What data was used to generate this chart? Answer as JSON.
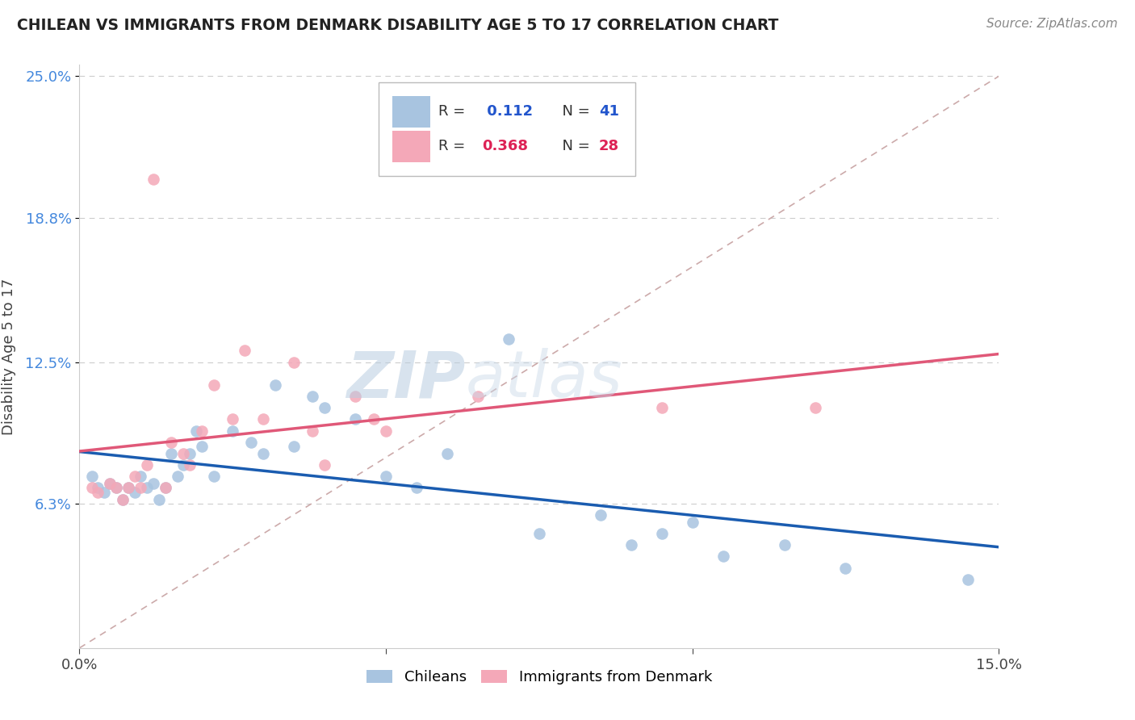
{
  "title": "CHILEAN VS IMMIGRANTS FROM DENMARK DISABILITY AGE 5 TO 17 CORRELATION CHART",
  "source": "Source: ZipAtlas.com",
  "ylabel": "Disability Age 5 to 17",
  "xmin": 0.0,
  "xmax": 15.0,
  "ymin": 0.0,
  "ymax": 25.0,
  "yticks": [
    6.3,
    12.5,
    18.8,
    25.0
  ],
  "xticks": [
    0.0,
    5.0,
    10.0,
    15.0
  ],
  "xtick_labels": [
    "0.0%",
    "",
    "",
    "15.0%"
  ],
  "ytick_labels": [
    "6.3%",
    "12.5%",
    "18.8%",
    "25.0%"
  ],
  "r1": "0.112",
  "n1": "41",
  "r2": "0.368",
  "n2": "28",
  "chilean_color": "#a8c4e0",
  "denmark_color": "#f4a8b8",
  "line_blue": "#1a5cb0",
  "line_pink": "#e05878",
  "diag_color": "#ccaaaa",
  "chilean_label": "Chileans",
  "denmark_label": "Immigrants from Denmark",
  "watermark_zip": "ZIP",
  "watermark_atlas": "atlas",
  "chilean_x": [
    0.2,
    0.3,
    0.4,
    0.5,
    0.6,
    0.7,
    0.8,
    0.9,
    1.0,
    1.1,
    1.2,
    1.3,
    1.4,
    1.5,
    1.6,
    1.7,
    1.8,
    1.9,
    2.0,
    2.2,
    2.5,
    2.8,
    3.0,
    3.2,
    3.5,
    3.8,
    4.0,
    4.5,
    5.0,
    5.5,
    6.0,
    7.0,
    7.5,
    8.5,
    9.0,
    9.5,
    10.0,
    10.5,
    11.5,
    12.5,
    14.5
  ],
  "chilean_y": [
    7.5,
    7.0,
    6.8,
    7.2,
    7.0,
    6.5,
    7.0,
    6.8,
    7.5,
    7.0,
    7.2,
    6.5,
    7.0,
    8.5,
    7.5,
    8.0,
    8.5,
    9.5,
    8.8,
    7.5,
    9.5,
    9.0,
    8.5,
    11.5,
    8.8,
    11.0,
    10.5,
    10.0,
    7.5,
    7.0,
    8.5,
    13.5,
    5.0,
    5.8,
    4.5,
    5.0,
    5.5,
    4.0,
    4.5,
    3.5,
    3.0
  ],
  "denmark_x": [
    0.2,
    0.3,
    0.5,
    0.6,
    0.7,
    0.8,
    0.9,
    1.0,
    1.1,
    1.2,
    1.4,
    1.5,
    1.7,
    1.8,
    2.0,
    2.2,
    2.5,
    2.7,
    3.0,
    3.5,
    3.8,
    4.0,
    4.5,
    4.8,
    5.0,
    6.5,
    9.5,
    12.0
  ],
  "denmark_y": [
    7.0,
    6.8,
    7.2,
    7.0,
    6.5,
    7.0,
    7.5,
    7.0,
    8.0,
    20.5,
    7.0,
    9.0,
    8.5,
    8.0,
    9.5,
    11.5,
    10.0,
    13.0,
    10.0,
    12.5,
    9.5,
    8.0,
    11.0,
    10.0,
    9.5,
    11.0,
    10.5,
    10.5
  ]
}
